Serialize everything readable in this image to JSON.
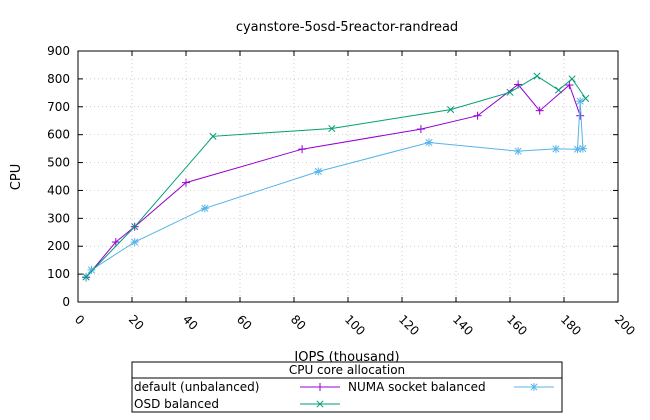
{
  "chart_data": {
    "type": "line",
    "title": "cyanstore-5osd-5reactor-randread",
    "xlabel": "IOPS (thousand)",
    "ylabel": "CPU",
    "xlim": [
      0,
      200
    ],
    "ylim": [
      0,
      900
    ],
    "xticks": [
      "0",
      "20",
      "40",
      "60",
      "80",
      "100",
      "120",
      "140",
      "160",
      "180",
      "200"
    ],
    "yticks": [
      "0",
      "100",
      "200",
      "300",
      "400",
      "500",
      "600",
      "700",
      "800",
      "900"
    ],
    "grid": true,
    "legend": {
      "title": "CPU core allocation",
      "placement": "bottom"
    },
    "series": [
      {
        "name": "default (unbalanced)",
        "color": "#9400d3",
        "marker": "plus",
        "points": [
          [
            3,
            88
          ],
          [
            14,
            215
          ],
          [
            21,
            270
          ],
          [
            40,
            428
          ],
          [
            83,
            548
          ],
          [
            127,
            620
          ],
          [
            148,
            668
          ],
          [
            163,
            780
          ],
          [
            171,
            686
          ],
          [
            182,
            778
          ],
          [
            186,
            668
          ]
        ]
      },
      {
        "name": "NUMA socket balanced",
        "color": "#56b4e9",
        "marker": "asterisk",
        "points": [
          [
            3,
            90
          ],
          [
            5,
            115
          ],
          [
            21,
            215
          ],
          [
            47,
            336
          ],
          [
            89,
            468
          ],
          [
            130,
            572
          ],
          [
            163,
            541
          ],
          [
            177,
            549
          ],
          [
            185,
            548
          ],
          [
            186,
            720
          ],
          [
            187,
            550
          ]
        ]
      },
      {
        "name": "OSD balanced",
        "color": "#009e73",
        "marker": "cross",
        "points": [
          [
            3,
            90
          ],
          [
            21,
            270
          ],
          [
            50,
            594
          ],
          [
            94,
            622
          ],
          [
            138,
            690
          ],
          [
            160,
            752
          ],
          [
            170,
            810
          ],
          [
            178,
            760
          ],
          [
            183,
            800
          ],
          [
            188,
            730
          ]
        ]
      }
    ]
  }
}
